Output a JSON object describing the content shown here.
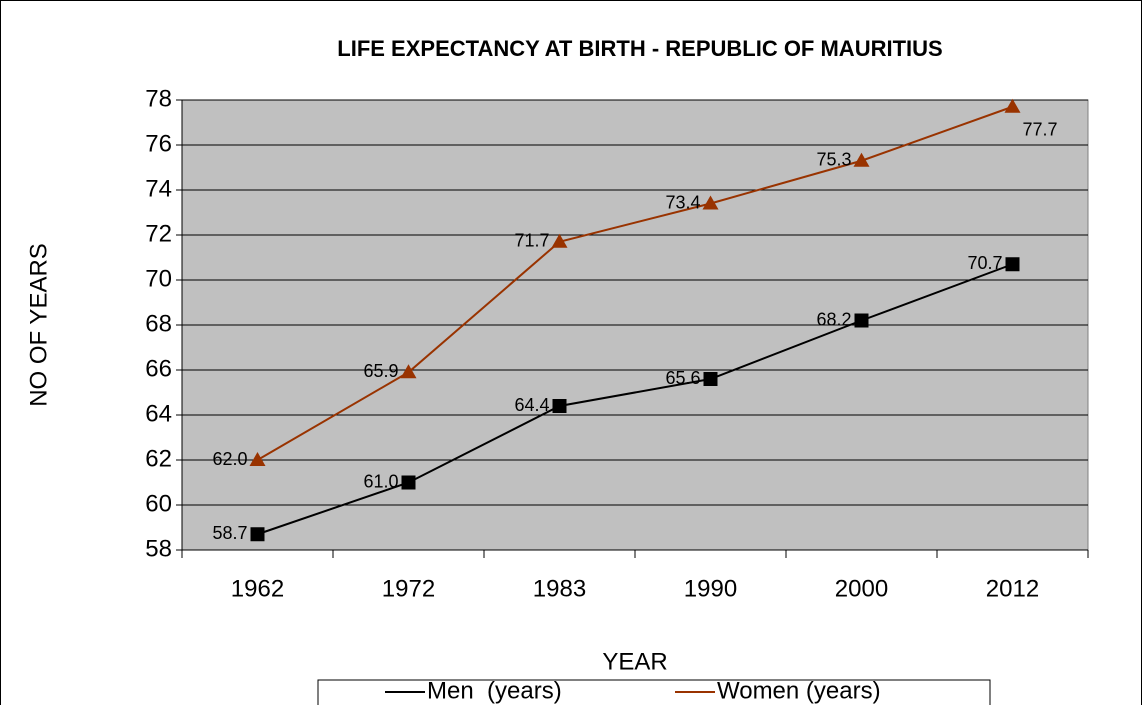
{
  "chart_data": {
    "type": "line",
    "title": "LIFE EXPECTANCY AT BIRTH - REPUBLIC OF MAURITIUS",
    "x_label": "YEAR",
    "y_label": "NO OF YEARS",
    "categories": [
      "1962",
      "1972",
      "1983",
      "1990",
      "2000",
      "2012"
    ],
    "series": [
      {
        "name": "Men  (years)",
        "color": "#000000",
        "marker": "square",
        "values": [
          58.7,
          61.0,
          64.4,
          65.6,
          68.2,
          70.7
        ],
        "value_labels": [
          "58.7",
          "61.0",
          "64.4",
          "65.6",
          "68.2",
          "70.7"
        ]
      },
      {
        "name": "Women (years)",
        "color": "#993300",
        "marker": "triangle",
        "values": [
          62.0,
          65.9,
          71.7,
          73.4,
          75.3,
          77.7
        ],
        "value_labels": [
          "62.0",
          "65.9",
          "71.7",
          "73.4",
          "75.3",
          "77.7"
        ]
      }
    ],
    "ylim": [
      58,
      78
    ],
    "yticks": [
      58,
      60,
      62,
      64,
      66,
      68,
      70,
      72,
      74,
      76,
      78
    ],
    "grid": true,
    "legend": "bottom",
    "background": "#c0c0c0"
  }
}
